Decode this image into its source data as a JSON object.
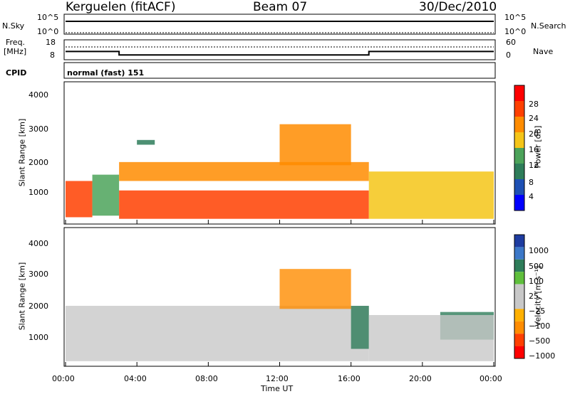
{
  "header": {
    "station": "Kerguelen (fitACF)",
    "beam": "Beam 07",
    "date": "30/Dec/2010"
  },
  "noise_panel": {
    "left_label": "N.Sky",
    "left_ticks": [
      "10^5",
      "10^0"
    ],
    "right_label": "N.Search",
    "right_ticks": [
      "10^5",
      "10^0"
    ]
  },
  "freq_panel": {
    "left_label_line1": "Freq.",
    "left_label_line2": "[MHz]",
    "left_ticks": [
      "18",
      "8"
    ],
    "right_label": "Nave",
    "right_ticks": [
      "60",
      "0"
    ]
  },
  "cpid": {
    "label": "CPID",
    "mode": "normal (fast) 151"
  },
  "power_panel": {
    "ylabel": "Slant Range [km]",
    "yticks": [
      "4000",
      "3000",
      "2000",
      "1000"
    ],
    "colorbar_label": "Power [dB]",
    "colorbar_ticks": [
      "28",
      "24",
      "20",
      "16",
      "12",
      "8",
      "4"
    ],
    "colors": [
      "#0000ff",
      "#1e50b4",
      "#2e7d5a",
      "#4ca35a",
      "#f5c518",
      "#ff8c00",
      "#ff4000",
      "#ff0000"
    ]
  },
  "velocity_panel": {
    "ylabel": "Slant Range [km]",
    "yticks": [
      "4000",
      "3000",
      "2000",
      "1000"
    ],
    "colorbar_label": "Velocity [m s⁻¹]",
    "colorbar_ticks": [
      "1000",
      "500",
      "100",
      "25",
      "−25",
      "−100",
      "−500",
      "−1000"
    ],
    "colors": [
      "#1e3ca0",
      "#3c78c8",
      "#2e7d5a",
      "#5fbf3c",
      "#c8c8c8",
      "#c8c8c8",
      "#ffb000",
      "#ff8c00",
      "#ff4000",
      "#ff0000"
    ]
  },
  "x_axis": {
    "ticks": [
      "00:00",
      "04:00",
      "08:00",
      "12:00",
      "16:00",
      "20:00",
      "00:00"
    ],
    "label": "Time UT"
  },
  "chart_data": {
    "type": "heatmap",
    "x_range_hours": [
      0,
      24
    ],
    "y_range_km": [
      180,
      4600
    ],
    "frequency_mhz": [
      {
        "start": 0,
        "end": 3,
        "value": 12
      },
      {
        "start": 3,
        "end": 17,
        "value": 10
      },
      {
        "start": 17,
        "end": 24,
        "value": 12
      }
    ],
    "power_bands": [
      {
        "t0": 0,
        "t1": 1.5,
        "r0": 350,
        "r1": 1500,
        "power": 24
      },
      {
        "t0": 1.5,
        "t1": 3,
        "r0": 400,
        "r1": 1700,
        "power": 14
      },
      {
        "t0": 3,
        "t1": 17,
        "r0": 1500,
        "r1": 2100,
        "power": 20
      },
      {
        "t0": 3,
        "t1": 17,
        "r0": 300,
        "r1": 1200,
        "power": 26
      },
      {
        "t0": 4,
        "t1": 5,
        "r0": 2650,
        "r1": 2800,
        "power": 10
      },
      {
        "t0": 12,
        "t1": 16,
        "r0": 2000,
        "r1": 3300,
        "power": 22
      },
      {
        "t0": 17,
        "t1": 24,
        "r0": 300,
        "r1": 1800,
        "power": 16
      }
    ],
    "velocity_bands": [
      {
        "t0": 0,
        "t1": 17,
        "r0": 300,
        "r1": 2100,
        "velocity": 0
      },
      {
        "t0": 12,
        "t1": 16,
        "r0": 2000,
        "r1": 3300,
        "velocity": -150
      },
      {
        "t0": 16,
        "t1": 17,
        "r0": 700,
        "r1": 2100,
        "velocity": 200
      },
      {
        "t0": 21,
        "t1": 24,
        "r0": 1000,
        "r1": 1900,
        "velocity": 150
      },
      {
        "t0": 17,
        "t1": 24,
        "r0": 300,
        "r1": 1800,
        "velocity": 0
      }
    ]
  }
}
